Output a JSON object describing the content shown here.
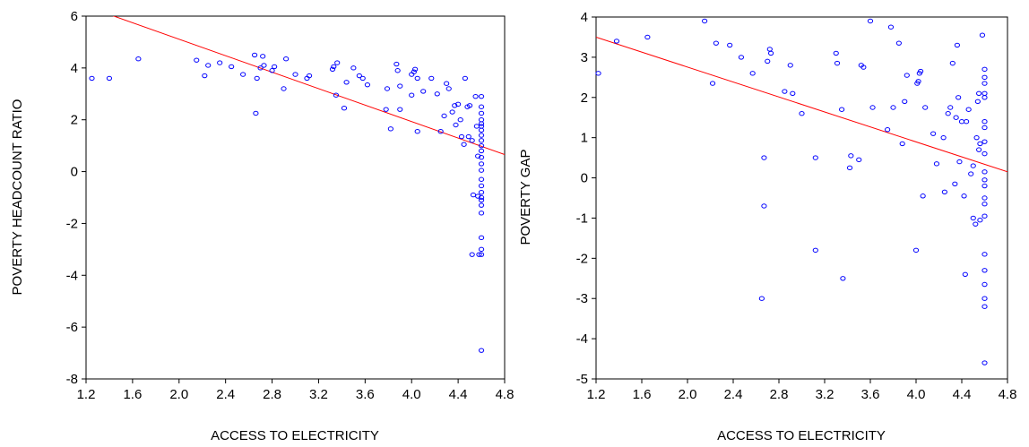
{
  "chart_data": [
    {
      "type": "scatter",
      "title": "",
      "xlabel": "ACCESS TO ELECTRICITY",
      "ylabel": "POVERTY HEADCOUNT RATIO",
      "xlim": [
        1.2,
        4.8
      ],
      "ylim": [
        -8,
        6
      ],
      "xticks": [
        "1.2",
        "1.6",
        "2.0",
        "2.4",
        "2.8",
        "3.2",
        "3.6",
        "4.0",
        "4.4",
        "4.8"
      ],
      "yticks": [
        "-8",
        "-6",
        "-4",
        "-2",
        "0",
        "2",
        "4",
        "6"
      ],
      "point_color": "#0000ff",
      "line_color": "#ff0000",
      "fit_line": {
        "x": [
          1.2,
          4.8
        ],
        "y": [
          6.38,
          0.66
        ]
      },
      "points": [
        [
          1.25,
          3.6
        ],
        [
          1.4,
          3.6
        ],
        [
          1.65,
          4.35
        ],
        [
          2.15,
          4.3
        ],
        [
          2.22,
          3.7
        ],
        [
          2.25,
          4.1
        ],
        [
          2.35,
          4.2
        ],
        [
          2.45,
          4.05
        ],
        [
          2.55,
          3.75
        ],
        [
          2.65,
          4.5
        ],
        [
          2.67,
          3.6
        ],
        [
          2.7,
          4.0
        ],
        [
          2.72,
          4.45
        ],
        [
          2.73,
          4.1
        ],
        [
          2.66,
          2.25
        ],
        [
          2.8,
          3.9
        ],
        [
          2.82,
          4.05
        ],
        [
          2.9,
          3.2
        ],
        [
          2.92,
          4.35
        ],
        [
          3.0,
          3.75
        ],
        [
          3.1,
          3.6
        ],
        [
          3.12,
          3.7
        ],
        [
          3.32,
          3.95
        ],
        [
          3.33,
          4.05
        ],
        [
          3.36,
          4.2
        ],
        [
          3.35,
          2.95
        ],
        [
          3.42,
          2.45
        ],
        [
          3.44,
          3.45
        ],
        [
          3.5,
          4.0
        ],
        [
          3.55,
          3.7
        ],
        [
          3.58,
          3.6
        ],
        [
          3.62,
          3.35
        ],
        [
          3.78,
          2.4
        ],
        [
          3.79,
          3.2
        ],
        [
          3.82,
          1.65
        ],
        [
          3.87,
          4.15
        ],
        [
          3.88,
          3.9
        ],
        [
          3.9,
          2.4
        ],
        [
          3.9,
          3.3
        ],
        [
          4.0,
          3.75
        ],
        [
          4.02,
          3.85
        ],
        [
          4.03,
          3.95
        ],
        [
          4.05,
          3.6
        ],
        [
          4.05,
          1.55
        ],
        [
          4.0,
          2.95
        ],
        [
          4.1,
          3.1
        ],
        [
          4.17,
          3.6
        ],
        [
          4.22,
          3.0
        ],
        [
          4.25,
          1.55
        ],
        [
          4.28,
          2.15
        ],
        [
          4.3,
          3.4
        ],
        [
          4.32,
          3.2
        ],
        [
          4.35,
          2.3
        ],
        [
          4.37,
          2.55
        ],
        [
          4.38,
          1.8
        ],
        [
          4.4,
          2.6
        ],
        [
          4.42,
          2.0
        ],
        [
          4.43,
          1.35
        ],
        [
          4.45,
          1.05
        ],
        [
          4.46,
          3.6
        ],
        [
          4.48,
          2.5
        ],
        [
          4.49,
          1.35
        ],
        [
          4.5,
          2.55
        ],
        [
          4.52,
          1.2
        ],
        [
          4.53,
          -0.9
        ],
        [
          4.52,
          -3.2
        ],
        [
          4.55,
          2.9
        ],
        [
          4.56,
          1.75
        ],
        [
          4.57,
          0.6
        ],
        [
          4.57,
          -0.95
        ],
        [
          4.58,
          -3.2
        ],
        [
          4.6,
          2.9
        ],
        [
          4.6,
          2.5
        ],
        [
          4.6,
          2.25
        ],
        [
          4.6,
          2.0
        ],
        [
          4.6,
          1.85
        ],
        [
          4.6,
          1.75
        ],
        [
          4.6,
          1.6
        ],
        [
          4.6,
          1.4
        ],
        [
          4.6,
          1.2
        ],
        [
          4.6,
          1.0
        ],
        [
          4.6,
          0.8
        ],
        [
          4.6,
          0.55
        ],
        [
          4.6,
          0.3
        ],
        [
          4.6,
          0.05
        ],
        [
          4.6,
          -0.3
        ],
        [
          4.6,
          -0.55
        ],
        [
          4.6,
          -0.8
        ],
        [
          4.6,
          -1.0
        ],
        [
          4.6,
          -1.1
        ],
        [
          4.6,
          -1.3
        ],
        [
          4.6,
          -1.6
        ],
        [
          4.6,
          -2.55
        ],
        [
          4.6,
          -3.0
        ],
        [
          4.6,
          -3.2
        ],
        [
          4.6,
          -6.9
        ]
      ]
    },
    {
      "type": "scatter",
      "title": "",
      "xlabel": "ACCESS TO ELECTRICITY",
      "ylabel": "POVERTY GAP",
      "xlim": [
        1.2,
        4.8
      ],
      "ylim": [
        -5,
        4
      ],
      "xticks": [
        "1.2",
        "1.6",
        "2.0",
        "2.4",
        "2.8",
        "3.2",
        "3.6",
        "4.0",
        "4.4",
        "4.8"
      ],
      "yticks": [
        "-5",
        "-4",
        "-3",
        "-2",
        "-1",
        "0",
        "1",
        "2",
        "3",
        "4"
      ],
      "point_color": "#0000ff",
      "line_color": "#ff0000",
      "fit_line": {
        "x": [
          1.2,
          4.8
        ],
        "y": [
          3.5,
          0.15
        ]
      },
      "points": [
        [
          1.22,
          2.6
        ],
        [
          1.38,
          3.4
        ],
        [
          1.65,
          3.5
        ],
        [
          2.15,
          3.9
        ],
        [
          2.22,
          2.35
        ],
        [
          2.25,
          3.35
        ],
        [
          2.37,
          3.3
        ],
        [
          2.47,
          3.0
        ],
        [
          2.57,
          2.6
        ],
        [
          2.65,
          -3.0
        ],
        [
          2.67,
          0.5
        ],
        [
          2.67,
          -0.7
        ],
        [
          2.7,
          2.9
        ],
        [
          2.72,
          3.2
        ],
        [
          2.73,
          3.1
        ],
        [
          2.85,
          2.15
        ],
        [
          2.9,
          2.8
        ],
        [
          2.92,
          2.1
        ],
        [
          3.0,
          1.6
        ],
        [
          3.12,
          0.5
        ],
        [
          3.12,
          -1.8
        ],
        [
          3.3,
          3.1
        ],
        [
          3.31,
          2.85
        ],
        [
          3.35,
          1.7
        ],
        [
          3.36,
          -2.5
        ],
        [
          3.42,
          0.25
        ],
        [
          3.43,
          0.55
        ],
        [
          3.5,
          0.45
        ],
        [
          3.52,
          2.8
        ],
        [
          3.54,
          2.75
        ],
        [
          3.6,
          3.9
        ],
        [
          3.62,
          1.75
        ],
        [
          3.75,
          1.2
        ],
        [
          3.78,
          3.75
        ],
        [
          3.8,
          1.75
        ],
        [
          3.85,
          3.35
        ],
        [
          3.88,
          0.85
        ],
        [
          3.9,
          1.9
        ],
        [
          3.92,
          2.55
        ],
        [
          4.0,
          -1.8
        ],
        [
          4.01,
          2.35
        ],
        [
          4.02,
          2.4
        ],
        [
          4.03,
          2.6
        ],
        [
          4.04,
          2.65
        ],
        [
          4.06,
          -0.45
        ],
        [
          4.08,
          1.75
        ],
        [
          4.15,
          1.1
        ],
        [
          4.18,
          0.35
        ],
        [
          4.24,
          1.0
        ],
        [
          4.25,
          -0.35
        ],
        [
          4.28,
          1.6
        ],
        [
          4.3,
          1.75
        ],
        [
          4.32,
          2.85
        ],
        [
          4.34,
          -0.15
        ],
        [
          4.35,
          1.5
        ],
        [
          4.36,
          3.3
        ],
        [
          4.37,
          2.0
        ],
        [
          4.38,
          0.4
        ],
        [
          4.4,
          1.4
        ],
        [
          4.42,
          -0.45
        ],
        [
          4.43,
          -2.4
        ],
        [
          4.44,
          1.4
        ],
        [
          4.46,
          1.7
        ],
        [
          4.48,
          0.1
        ],
        [
          4.5,
          0.3
        ],
        [
          4.5,
          -1.0
        ],
        [
          4.52,
          -1.15
        ],
        [
          4.53,
          1.0
        ],
        [
          4.54,
          1.9
        ],
        [
          4.55,
          2.1
        ],
        [
          4.55,
          0.7
        ],
        [
          4.56,
          0.85
        ],
        [
          4.56,
          -1.05
        ],
        [
          4.58,
          3.55
        ],
        [
          4.6,
          2.7
        ],
        [
          4.6,
          2.5
        ],
        [
          4.6,
          2.35
        ],
        [
          4.6,
          2.1
        ],
        [
          4.6,
          2.0
        ],
        [
          4.6,
          1.4
        ],
        [
          4.6,
          1.25
        ],
        [
          4.6,
          0.9
        ],
        [
          4.6,
          0.6
        ],
        [
          4.6,
          0.15
        ],
        [
          4.6,
          -0.05
        ],
        [
          4.6,
          -0.2
        ],
        [
          4.6,
          -0.5
        ],
        [
          4.6,
          -0.65
        ],
        [
          4.6,
          -0.95
        ],
        [
          4.6,
          -1.9
        ],
        [
          4.6,
          -2.3
        ],
        [
          4.6,
          -2.65
        ],
        [
          4.6,
          -3.0
        ],
        [
          4.6,
          -3.2
        ],
        [
          4.6,
          -4.6
        ]
      ]
    }
  ]
}
